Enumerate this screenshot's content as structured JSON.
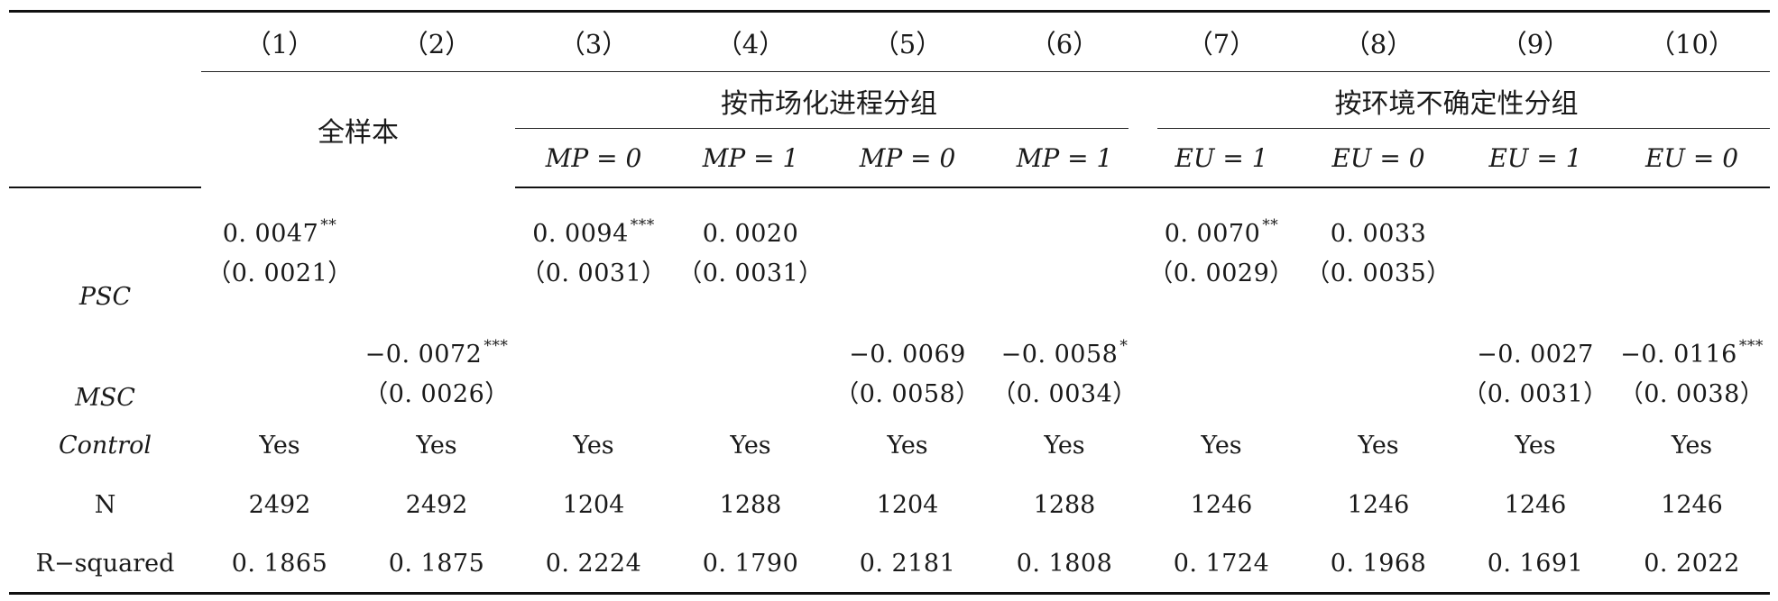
{
  "columns": [
    "（1）",
    "（2）",
    "（3）",
    "（4）",
    "（5）",
    "（6）",
    "（7）",
    "（8）",
    "（9）",
    "（10）"
  ],
  "groups": {
    "full_sample": "全样本",
    "market_process": "按市场化进程分组",
    "env_uncertainty": "按环境不确定性分组"
  },
  "conditions": {
    "c3": "MP = 0",
    "c4": "MP = 1",
    "c5": "MP = 0",
    "c6": "MP = 1",
    "c7": "EU = 1",
    "c8": "EU = 0",
    "c9": "EU = 1",
    "c10": "EU = 0"
  },
  "rows": {
    "psc": {
      "label": "PSC",
      "c1": {
        "coef": "0. 0047",
        "stars": "**",
        "se": "（0. 0021）"
      },
      "c3": {
        "coef": "0. 0094",
        "stars": "***",
        "se": "（0. 0031）"
      },
      "c4": {
        "coef": "0. 0020",
        "stars": "",
        "se": "（0. 0031）"
      },
      "c7": {
        "coef": "0. 0070",
        "stars": "**",
        "se": "（0. 0029）"
      },
      "c8": {
        "coef": "0. 0033",
        "stars": "",
        "se": "（0. 0035）"
      }
    },
    "msc": {
      "label": "MSC",
      "c2": {
        "coef": "−0. 0072",
        "stars": "***",
        "se": "（0. 0026）"
      },
      "c5": {
        "coef": "−0. 0069",
        "stars": "",
        "se": "（0. 0058）"
      },
      "c6": {
        "coef": "−0. 0058",
        "stars": "*",
        "se": "（0. 0034）"
      },
      "c9": {
        "coef": "−0. 0027",
        "stars": "",
        "se": "（0. 0031）"
      },
      "c10": {
        "coef": "−0. 0116",
        "stars": "***",
        "se": "（0. 0038）"
      }
    },
    "control": {
      "label": "Control",
      "values": [
        "Yes",
        "Yes",
        "Yes",
        "Yes",
        "Yes",
        "Yes",
        "Yes",
        "Yes",
        "Yes",
        "Yes"
      ]
    },
    "n": {
      "label": "N",
      "values": [
        "2492",
        "2492",
        "1204",
        "1288",
        "1204",
        "1288",
        "1246",
        "1246",
        "1246",
        "1246"
      ]
    },
    "r2": {
      "label": "R−squared",
      "values": [
        "0. 1865",
        "0. 1875",
        "0. 2224",
        "0. 1790",
        "0. 2181",
        "0. 1808",
        "0. 1724",
        "0. 1968",
        "0. 1691",
        "0. 2022"
      ]
    }
  }
}
